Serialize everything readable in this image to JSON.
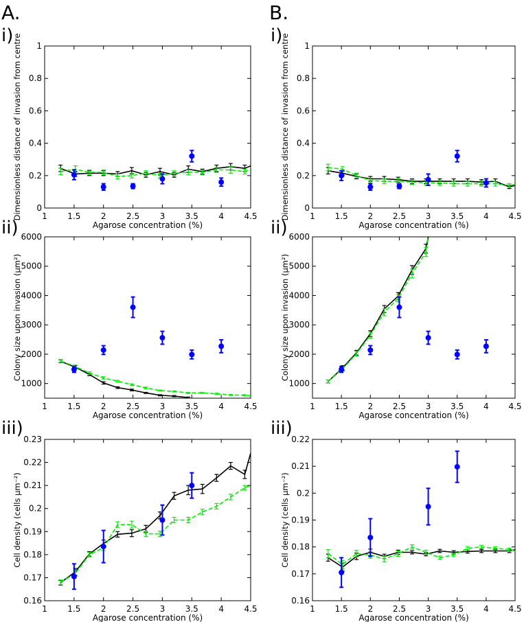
{
  "figure": {
    "column_labels": [
      "A.",
      "B."
    ],
    "panel_labels": [
      "i)",
      "ii)",
      "iii)"
    ]
  },
  "colors": {
    "black_series": "#000000",
    "green_series": "#00ee00",
    "blue_points": "#0000ff"
  },
  "chart_data": [
    {
      "id": "A-i",
      "column": "A.",
      "row": "i)",
      "type": "line",
      "xlabel": "Agarose concentration (%)",
      "ylabel": "Dimensionless distance of invasion from centre",
      "xlim": [
        1,
        4.5
      ],
      "ylim": [
        0,
        1
      ],
      "xticks": [
        1,
        1.5,
        2,
        2.5,
        3,
        3.5,
        4,
        4.5
      ],
      "xtick_labels": [
        "1",
        "1.5",
        "2",
        "2.5",
        "3",
        "3.5",
        "4",
        "4.5"
      ],
      "yticks": [
        0,
        0.2,
        0.4,
        0.6,
        0.8,
        1
      ],
      "ytick_labels": [
        "0",
        "0.2",
        "0.4",
        "0.6",
        "0.8",
        "1"
      ],
      "series": [
        {
          "name": "black",
          "style": "solid",
          "color": "#000000",
          "x": [
            1.27,
            1.52,
            1.76,
            2.0,
            2.24,
            2.48,
            2.72,
            2.96,
            3.2,
            3.44,
            3.68,
            3.92,
            4.16,
            4.4,
            4.5
          ],
          "y": [
            0.245,
            0.21,
            0.215,
            0.215,
            0.21,
            0.23,
            0.205,
            0.225,
            0.205,
            0.24,
            0.225,
            0.245,
            0.255,
            0.245,
            0.26
          ],
          "err": [
            0.02,
            0.015,
            0.015,
            0.015,
            0.015,
            0.02,
            0.015,
            0.02,
            0.015,
            0.02,
            0.015,
            0.02,
            0.02,
            0.02,
            0
          ]
        },
        {
          "name": "green",
          "style": "dashed",
          "color": "#00ee00",
          "x": [
            1.27,
            1.52,
            1.76,
            2.0,
            2.24,
            2.48,
            2.72,
            2.96,
            3.2,
            3.44,
            3.68,
            3.92,
            4.16,
            4.4,
            4.5
          ],
          "y": [
            0.225,
            0.24,
            0.22,
            0.22,
            0.195,
            0.2,
            0.215,
            0.2,
            0.215,
            0.22,
            0.22,
            0.235,
            0.235,
            0.225,
            0.235
          ],
          "err": [
            0.02,
            0.02,
            0.015,
            0.015,
            0.015,
            0.015,
            0.015,
            0.015,
            0.015,
            0.015,
            0.015,
            0.015,
            0.02,
            0.015,
            0
          ]
        }
      ],
      "points": {
        "name": "blue",
        "color": "#0000ff",
        "x": [
          1.5,
          2.0,
          2.5,
          3.0,
          3.5,
          4.0
        ],
        "y": [
          0.205,
          0.13,
          0.135,
          0.18,
          0.32,
          0.16
        ],
        "err": [
          0.03,
          0.02,
          0.015,
          0.03,
          0.035,
          0.025
        ]
      }
    },
    {
      "id": "B-i",
      "column": "B.",
      "row": "i)",
      "type": "line",
      "xlabel": "Agarose concentration (%)",
      "ylabel": "Dimensionless distance of invasion from centre",
      "xlim": [
        1,
        4.5
      ],
      "ylim": [
        0,
        1
      ],
      "xticks": [
        1,
        1.5,
        2,
        2.5,
        3,
        3.5,
        4,
        4.5
      ],
      "xtick_labels": [
        "1",
        "1.5",
        "2",
        "2.5",
        "3",
        "3.5",
        "4",
        "4.5"
      ],
      "yticks": [
        0,
        0.2,
        0.4,
        0.6,
        0.8,
        1
      ],
      "ytick_labels": [
        "0",
        "0.2",
        "0.4",
        "0.6",
        "0.8",
        "1"
      ],
      "series": [
        {
          "name": "black",
          "style": "solid",
          "color": "#000000",
          "x": [
            1.27,
            1.52,
            1.76,
            2.0,
            2.24,
            2.48,
            2.72,
            2.96,
            3.2,
            3.44,
            3.68,
            3.92,
            4.16,
            4.4,
            4.5
          ],
          "y": [
            0.23,
            0.215,
            0.195,
            0.18,
            0.18,
            0.175,
            0.165,
            0.165,
            0.165,
            0.165,
            0.165,
            0.16,
            0.165,
            0.13,
            0.14
          ],
          "err": [
            0.02,
            0.015,
            0.015,
            0.015,
            0.015,
            0.015,
            0.015,
            0.015,
            0.015,
            0.015,
            0.015,
            0.015,
            0.015,
            0.01,
            0
          ]
        },
        {
          "name": "green",
          "style": "dashed",
          "color": "#00ee00",
          "x": [
            1.27,
            1.52,
            1.76,
            2.0,
            2.24,
            2.48,
            2.72,
            2.96,
            3.2,
            3.44,
            3.68,
            3.92,
            4.16,
            4.4,
            4.5
          ],
          "y": [
            0.25,
            0.24,
            0.2,
            0.17,
            0.165,
            0.165,
            0.16,
            0.155,
            0.155,
            0.15,
            0.15,
            0.15,
            0.15,
            0.14,
            0.145
          ],
          "err": [
            0.02,
            0.015,
            0.015,
            0.015,
            0.015,
            0.015,
            0.015,
            0.015,
            0.015,
            0.015,
            0.015,
            0.015,
            0.015,
            0.01,
            0
          ]
        }
      ],
      "points": {
        "name": "blue",
        "color": "#0000ff",
        "x": [
          1.5,
          2.0,
          2.5,
          3.0,
          3.5,
          4.0
        ],
        "y": [
          0.2,
          0.13,
          0.135,
          0.175,
          0.32,
          0.155
        ],
        "err": [
          0.03,
          0.02,
          0.015,
          0.035,
          0.035,
          0.025
        ]
      }
    },
    {
      "id": "A-ii",
      "column": "A.",
      "row": "ii)",
      "type": "line",
      "xlabel": "Agarose concentration (%)",
      "ylabel": "Colony size upon invasion (μm²)",
      "xlim": [
        1,
        4.5
      ],
      "ylim": [
        500,
        6000
      ],
      "xticks": [
        1,
        1.5,
        2,
        2.5,
        3,
        3.5,
        4,
        4.5
      ],
      "xtick_labels": [
        "1",
        "1.5",
        "2",
        "2.5",
        "3",
        "3.5",
        "4",
        "4.5"
      ],
      "yticks": [
        1000,
        2000,
        3000,
        4000,
        5000,
        6000
      ],
      "ytick_labels": [
        "1000",
        "2000",
        "3000",
        "4000",
        "5000",
        "6000"
      ],
      "series": [
        {
          "name": "black",
          "style": "solid",
          "color": "#000000",
          "x": [
            1.27,
            1.52,
            1.76,
            2.0,
            2.24,
            2.48,
            2.72,
            2.96,
            3.2,
            3.44
          ],
          "y": [
            1760,
            1560,
            1310,
            1020,
            860,
            780,
            680,
            600,
            570,
            520
          ],
          "err": [
            50,
            50,
            40,
            40,
            30,
            30,
            20,
            20,
            20,
            20
          ]
        },
        {
          "name": "green",
          "style": "dashed",
          "color": "#00ee00",
          "x": [
            1.27,
            1.52,
            1.76,
            2.0,
            2.24,
            2.48,
            2.72,
            2.96,
            3.2,
            3.44,
            3.68,
            3.92,
            4.16,
            4.4,
            4.5
          ],
          "y": [
            1770,
            1580,
            1360,
            1190,
            1080,
            960,
            850,
            760,
            730,
            680,
            680,
            650,
            610,
            600,
            590
          ],
          "err": [
            50,
            50,
            40,
            40,
            30,
            30,
            30,
            20,
            20,
            20,
            20,
            20,
            20,
            20,
            0
          ]
        }
      ],
      "points": {
        "name": "blue",
        "color": "#0000ff",
        "x": [
          1.5,
          2.0,
          2.5,
          3.0,
          3.5,
          4.0
        ],
        "y": [
          1480,
          2140,
          3600,
          2560,
          1990,
          2270
        ],
        "err": [
          100,
          150,
          350,
          220,
          150,
          220
        ]
      }
    },
    {
      "id": "B-ii",
      "column": "B.",
      "row": "ii)",
      "type": "line",
      "xlabel": "Agarose concentration (%)",
      "ylabel": "Colony size upon invasion (μm²)",
      "xlim": [
        1,
        4.5
      ],
      "ylim": [
        500,
        6000
      ],
      "xticks": [
        1,
        1.5,
        2,
        2.5,
        3,
        3.5,
        4,
        4.5
      ],
      "xtick_labels": [
        "1",
        "1.5",
        "2",
        "2.5",
        "3",
        "3.5",
        "4",
        "4.5"
      ],
      "yticks": [
        1000,
        2000,
        3000,
        4000,
        5000,
        6000
      ],
      "ytick_labels": [
        "1000",
        "2000",
        "3000",
        "4000",
        "5000",
        "6000"
      ],
      "series": [
        {
          "name": "black",
          "style": "solid",
          "color": "#000000",
          "x": [
            1.27,
            1.52,
            1.76,
            2.0,
            2.24,
            2.48,
            2.72,
            2.96,
            3.0
          ],
          "y": [
            1070,
            1530,
            2050,
            2700,
            3540,
            3980,
            4870,
            5600,
            6000
          ],
          "err": [
            50,
            80,
            80,
            100,
            120,
            120,
            150,
            150,
            0
          ]
        },
        {
          "name": "green",
          "style": "dashed",
          "color": "#00ee00",
          "x": [
            1.27,
            1.52,
            1.76,
            2.0,
            2.24,
            2.48,
            2.72,
            2.96,
            3.0
          ],
          "y": [
            1070,
            1500,
            2020,
            2650,
            3430,
            3900,
            4750,
            5480,
            6000
          ],
          "err": [
            50,
            80,
            80,
            100,
            120,
            120,
            150,
            150,
            0
          ]
        }
      ],
      "points": {
        "name": "blue",
        "color": "#0000ff",
        "x": [
          1.5,
          2.0,
          2.5,
          3.0,
          3.5,
          4.0
        ],
        "y": [
          1480,
          2140,
          3600,
          2560,
          1990,
          2270
        ],
        "err": [
          100,
          150,
          350,
          220,
          150,
          220
        ]
      }
    },
    {
      "id": "A-iii",
      "column": "A.",
      "row": "iii)",
      "type": "line",
      "xlabel": "Agarose concentration (%)",
      "ylabel": "Cell density (cells μm⁻²)",
      "xlim": [
        1,
        4.5
      ],
      "ylim": [
        0.16,
        0.23
      ],
      "xticks": [
        1,
        1.5,
        2,
        2.5,
        3,
        3.5,
        4,
        4.5
      ],
      "xtick_labels": [
        "1",
        "1.5",
        "2",
        "2.5",
        "3",
        "3.5",
        "4",
        "4.5"
      ],
      "yticks": [
        0.16,
        0.17,
        0.18,
        0.19,
        0.2,
        0.21,
        0.22,
        0.23
      ],
      "ytick_labels": [
        "0.16",
        "0.17",
        "0.18",
        "0.19",
        "0.2",
        "0.21",
        "0.22",
        "0.23"
      ],
      "series": [
        {
          "name": "black",
          "style": "solid",
          "color": "#000000",
          "x": [
            1.27,
            1.52,
            1.76,
            2.0,
            2.24,
            2.48,
            2.72,
            2.96,
            3.2,
            3.44,
            3.68,
            3.92,
            4.16,
            4.4,
            4.5
          ],
          "y": [
            0.1678,
            0.1725,
            0.1803,
            0.1848,
            0.1888,
            0.1893,
            0.1912,
            0.197,
            0.2055,
            0.208,
            0.2085,
            0.2133,
            0.2185,
            0.2148,
            0.224
          ],
          "err": [
            0.001,
            0.0015,
            0.001,
            0.0015,
            0.0012,
            0.0015,
            0.0015,
            0.0015,
            0.0015,
            0.002,
            0.002,
            0.0015,
            0.0015,
            0.0018,
            0
          ]
        },
        {
          "name": "green",
          "style": "dashed",
          "color": "#00ee00",
          "x": [
            1.27,
            1.52,
            1.76,
            2.0,
            2.24,
            2.48,
            2.72,
            2.96,
            3.2,
            3.44,
            3.68,
            3.92,
            4.16,
            4.4,
            4.5
          ],
          "y": [
            0.168,
            0.1718,
            0.18,
            0.183,
            0.193,
            0.193,
            0.189,
            0.189,
            0.195,
            0.195,
            0.1985,
            0.201,
            0.205,
            0.209,
            0.21
          ],
          "err": [
            0.001,
            0.0012,
            0.001,
            0.0012,
            0.0012,
            0.0015,
            0.0012,
            0.0012,
            0.0012,
            0.0012,
            0.0012,
            0.0012,
            0.0012,
            0.001,
            0
          ]
        }
      ],
      "points": {
        "name": "blue",
        "color": "#0000ff",
        "x": [
          1.5,
          2.0,
          3.0,
          3.5
        ],
        "y": [
          0.1705,
          0.1835,
          0.195,
          0.21
        ],
        "err": [
          0.0055,
          0.007,
          0.0065,
          0.0055
        ]
      }
    },
    {
      "id": "B-iii",
      "column": "B.",
      "row": "iii)",
      "type": "line",
      "xlabel": "Agarose concentration (%)",
      "ylabel": "Cell density (cells μm⁻²)",
      "xlim": [
        1,
        4.5
      ],
      "ylim": [
        0.16,
        0.22
      ],
      "xticks": [
        1,
        1.5,
        2,
        2.5,
        3,
        3.5,
        4,
        4.5
      ],
      "xtick_labels": [
        "1",
        "1.5",
        "2",
        "2.5",
        "3",
        "3.5",
        "4",
        "4.5"
      ],
      "yticks": [
        0.16,
        0.17,
        0.18,
        0.19,
        0.2,
        0.21,
        0.22
      ],
      "ytick_labels": [
        "0.16",
        "0.17",
        "0.18",
        "0.19",
        "0.2",
        "0.21",
        "0.22"
      ],
      "series": [
        {
          "name": "black",
          "style": "solid",
          "color": "#000000",
          "x": [
            1.27,
            1.52,
            1.76,
            2.0,
            2.24,
            2.48,
            2.72,
            2.96,
            3.2,
            3.44,
            3.68,
            3.92,
            4.16,
            4.4,
            4.5
          ],
          "y": [
            0.176,
            0.1725,
            0.1765,
            0.178,
            0.1765,
            0.178,
            0.178,
            0.1773,
            0.1785,
            0.178,
            0.1783,
            0.1785,
            0.1785,
            0.1785,
            0.179
          ],
          "err": [
            0.0013,
            0.0015,
            0.0012,
            0.0012,
            0.0008,
            0.0008,
            0.0006,
            0.0006,
            0.0006,
            0.0006,
            0.0006,
            0.0006,
            0.0006,
            0.0006,
            0
          ]
        },
        {
          "name": "green",
          "style": "dashed",
          "color": "#00ee00",
          "x": [
            1.27,
            1.52,
            1.76,
            2.0,
            2.24,
            2.48,
            2.72,
            2.96,
            3.2,
            3.44,
            3.68,
            3.92,
            4.16,
            4.4,
            4.5
          ],
          "y": [
            0.1775,
            0.1735,
            0.1775,
            0.177,
            0.1755,
            0.1775,
            0.18,
            0.178,
            0.176,
            0.177,
            0.1795,
            0.18,
            0.1795,
            0.179,
            0.1785
          ],
          "err": [
            0.0015,
            0.0015,
            0.0012,
            0.0012,
            0.001,
            0.001,
            0.0008,
            0.0008,
            0.0006,
            0.0006,
            0.0006,
            0.0006,
            0.0006,
            0.0006,
            0
          ]
        }
      ],
      "points": {
        "name": "blue",
        "color": "#0000ff",
        "x": [
          1.5,
          2.0,
          3.0,
          3.5
        ],
        "y": [
          0.1705,
          0.1835,
          0.195,
          0.2098
        ],
        "err": [
          0.0055,
          0.007,
          0.0068,
          0.0058
        ]
      }
    }
  ]
}
